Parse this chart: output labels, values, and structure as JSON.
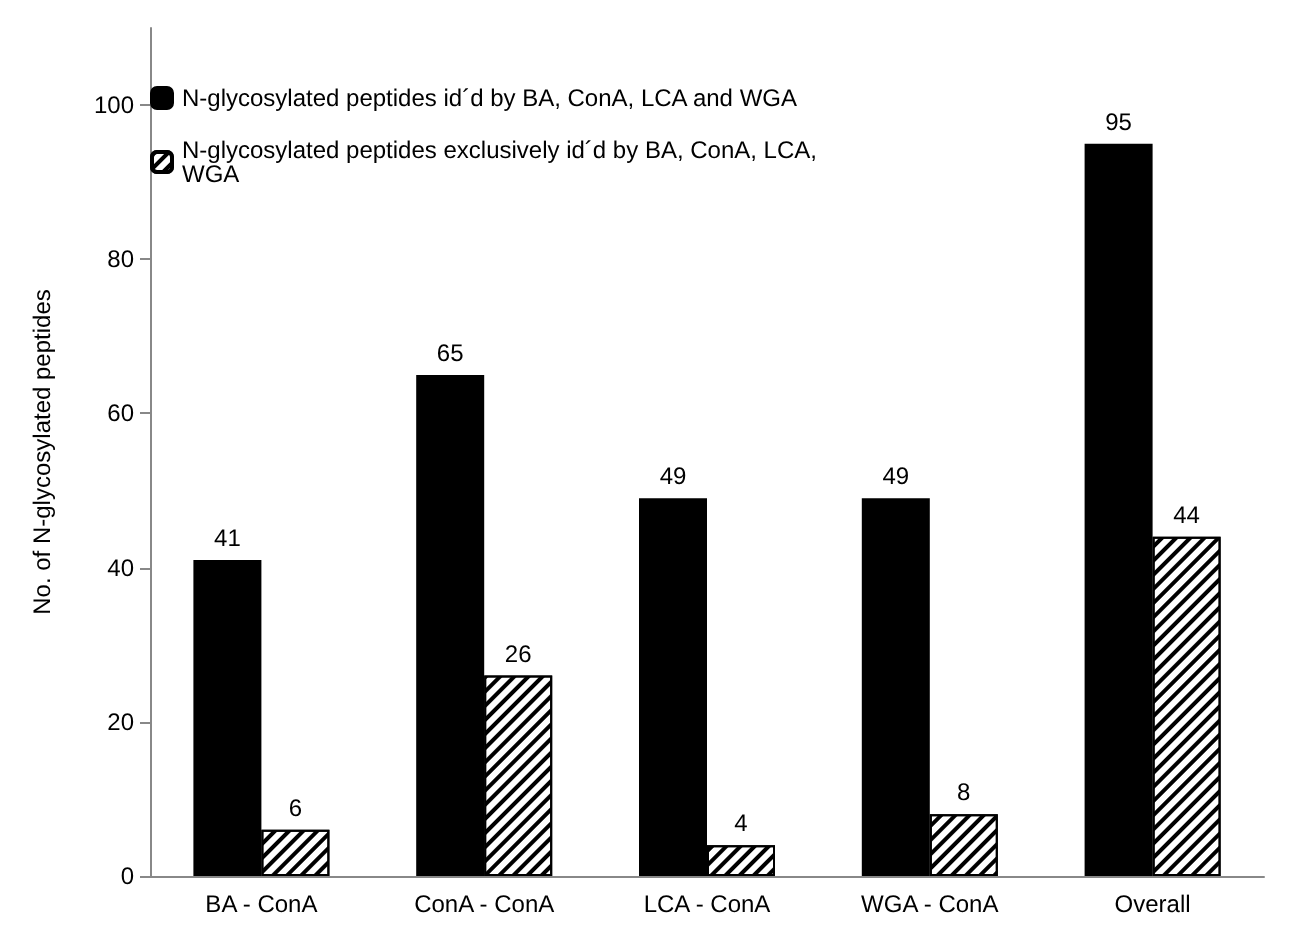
{
  "chart_data": {
    "type": "bar",
    "ylabel": "No. of N-glycosylated peptides",
    "categories": [
      "BA - ConA",
      "ConA - ConA",
      "LCA - ConA",
      "WGA - ConA",
      "Overall"
    ],
    "series": [
      {
        "name": "N-glycosylated peptides id´d by BA, ConA, LCA and WGA",
        "color": "#000000",
        "values": [
          41,
          65,
          49,
          49,
          95
        ]
      },
      {
        "name": "N-glycosylated peptides exclusively id´d by BA, ConA, LCA, WGA",
        "color": "#ffffff",
        "values": [
          6,
          26,
          4,
          8,
          44
        ]
      }
    ],
    "ylim": [
      0,
      110
    ],
    "yticks": [
      0,
      20,
      40,
      60,
      80,
      100
    ],
    "data_labels": true,
    "legend": "top left",
    "grid": false
  }
}
